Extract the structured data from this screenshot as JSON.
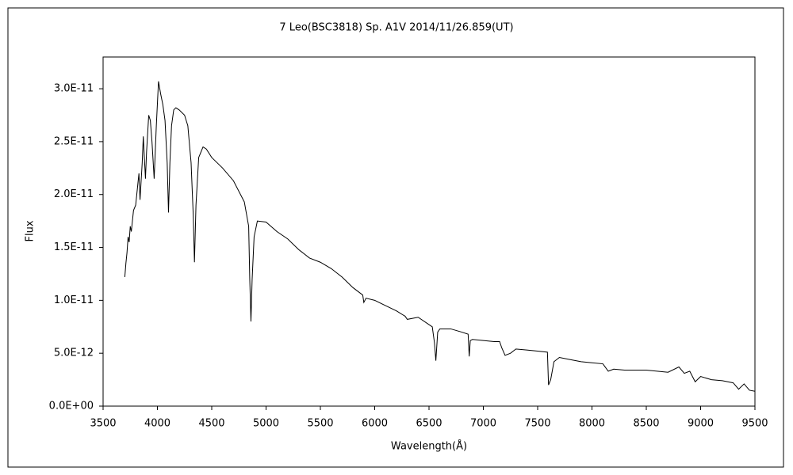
{
  "chart_data": {
    "type": "line",
    "title": "7 Leo(BSC3818)  Sp. A1V  2014/11/26.859(UT)",
    "x_label": "Wavelength(Å)",
    "y_label": "Flux",
    "xlim": [
      3500,
      9500
    ],
    "xticks": [
      3500,
      4000,
      4500,
      5000,
      5500,
      6000,
      6500,
      7000,
      7500,
      8000,
      8500,
      9000,
      9500
    ],
    "ylim": [
      0,
      3.3e-11
    ],
    "yticks": [
      {
        "value": 0,
        "label": "0.0E+00"
      },
      {
        "value": 5e-12,
        "label": "5.0E-12"
      },
      {
        "value": 1e-11,
        "label": "1.0E-11"
      },
      {
        "value": 1.5e-11,
        "label": "1.5E-11"
      },
      {
        "value": 2e-11,
        "label": "2.0E-11"
      },
      {
        "value": 2.5e-11,
        "label": "2.5E-11"
      },
      {
        "value": 3e-11,
        "label": "3.0E-11"
      }
    ],
    "color": "#000000",
    "x": [
      3700,
      3710,
      3720,
      3730,
      3740,
      3750,
      3760,
      3780,
      3800,
      3820,
      3830,
      3840,
      3860,
      3870,
      3880,
      3890,
      3900,
      3920,
      3935,
      3950,
      3970,
      3990,
      4010,
      4030,
      4050,
      4070,
      4090,
      4102,
      4115,
      4130,
      4150,
      4170,
      4200,
      4250,
      4280,
      4310,
      4330,
      4341,
      4355,
      4380,
      4420,
      4450,
      4500,
      4600,
      4700,
      4800,
      4840,
      4850,
      4861,
      4872,
      4890,
      4920,
      5000,
      5100,
      5200,
      5300,
      5400,
      5500,
      5600,
      5700,
      5800,
      5890,
      5900,
      5920,
      6000,
      6100,
      6200,
      6280,
      6300,
      6400,
      6500,
      6530,
      6550,
      6563,
      6580,
      6600,
      6700,
      6800,
      6860,
      6870,
      6880,
      6900,
      7000,
      7100,
      7150,
      7170,
      7200,
      7250,
      7300,
      7400,
      7500,
      7590,
      7600,
      7620,
      7650,
      7700,
      7800,
      7900,
      8000,
      8100,
      8150,
      8200,
      8300,
      8400,
      8500,
      8600,
      8700,
      8800,
      8850,
      8900,
      8950,
      9000,
      9100,
      9200,
      9300,
      9350,
      9400,
      9450,
      9500
    ],
    "values": [
      1.22e-11,
      1.35e-11,
      1.45e-11,
      1.6e-11,
      1.55e-11,
      1.7e-11,
      1.65e-11,
      1.85e-11,
      1.9e-11,
      2.1e-11,
      2.2e-11,
      1.95e-11,
      2.3e-11,
      2.55e-11,
      2.35e-11,
      2.15e-11,
      2.4e-11,
      2.75e-11,
      2.7e-11,
      2.5e-11,
      2.15e-11,
      2.65e-11,
      3.07e-11,
      2.95e-11,
      2.85e-11,
      2.7e-11,
      2.3e-11,
      1.83e-11,
      2.3e-11,
      2.65e-11,
      2.8e-11,
      2.82e-11,
      2.8e-11,
      2.75e-11,
      2.65e-11,
      2.3e-11,
      1.8e-11,
      1.36e-11,
      1.9e-11,
      2.35e-11,
      2.45e-11,
      2.43e-11,
      2.35e-11,
      2.25e-11,
      2.13e-11,
      1.93e-11,
      1.7e-11,
      1.2e-11,
      8e-12,
      1.2e-11,
      1.6e-11,
      1.75e-11,
      1.74e-11,
      1.65e-11,
      1.58e-11,
      1.48e-11,
      1.4e-11,
      1.36e-11,
      1.3e-11,
      1.22e-11,
      1.12e-11,
      1.05e-11,
      9.8e-12,
      1.02e-11,
      1e-11,
      9.5e-12,
      9e-12,
      8.5e-12,
      8.2e-12,
      8.4e-12,
      7.7e-12,
      7.5e-12,
      6e-12,
      4.3e-12,
      7e-12,
      7.3e-12,
      7.3e-12,
      7e-12,
      6.8e-12,
      4.7e-12,
      6.2e-12,
      6.3e-12,
      6.2e-12,
      6.1e-12,
      6.1e-12,
      5.5e-12,
      4.8e-12,
      5e-12,
      5.4e-12,
      5.3e-12,
      5.2e-12,
      5.1e-12,
      2e-12,
      2.5e-12,
      4.2e-12,
      4.6e-12,
      4.4e-12,
      4.2e-12,
      4.1e-12,
      4e-12,
      3.3e-12,
      3.5e-12,
      3.4e-12,
      3.4e-12,
      3.4e-12,
      3.3e-12,
      3.2e-12,
      3.7e-12,
      3.1e-12,
      3.3e-12,
      2.3e-12,
      2.8e-12,
      2.5e-12,
      2.4e-12,
      2.2e-12,
      1.6e-12,
      2.1e-12,
      1.5e-12,
      1.4e-12
    ]
  }
}
